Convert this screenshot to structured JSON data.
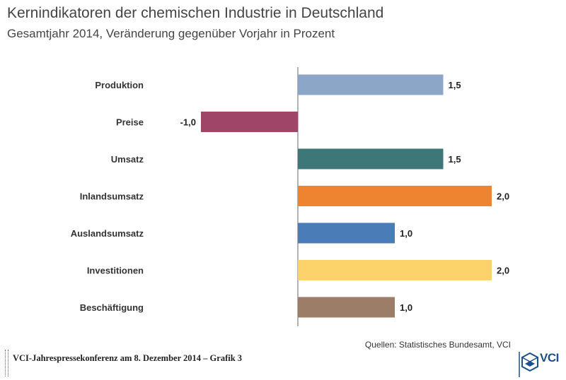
{
  "header": {
    "title": "Kernindikatoren der chemischen Industrie in Deutschland",
    "subtitle": "Gesamtjahr 2014, Veränderung gegenüber Vorjahr in Prozent"
  },
  "chart_data": {
    "type": "bar",
    "orientation": "horizontal",
    "title": "Kernindikatoren der chemischen Industrie in Deutschland",
    "subtitle": "Gesamtjahr 2014, Veränderung gegenüber Vorjahr in Prozent",
    "categories": [
      "Produktion",
      "Preise",
      "Umsatz",
      "Inlandsumsatz",
      "Auslandsumsatz",
      "Investitionen",
      "Beschäftigung"
    ],
    "values": [
      1.5,
      -1.0,
      1.5,
      2.0,
      1.0,
      2.0,
      1.0
    ],
    "labels": [
      "1,5",
      "-1,0",
      "1,5",
      "2,0",
      "1,0",
      "2,0",
      "1,0"
    ],
    "colors": [
      "#8ba6c6",
      "#9e4568",
      "#3e7778",
      "#ee8430",
      "#4a7db7",
      "#fbd36a",
      "#9c7d68"
    ],
    "xlim": [
      -1.0,
      2.0
    ],
    "grid": false,
    "xlabel": "",
    "ylabel": ""
  },
  "footer": {
    "source": "Quellen: Statistisches Bundesamt, VCI",
    "caption": "VCI-Jahrespressekonferenz am 8. Dezember 2014 – Grafik 3",
    "logo_text": "VCI"
  }
}
